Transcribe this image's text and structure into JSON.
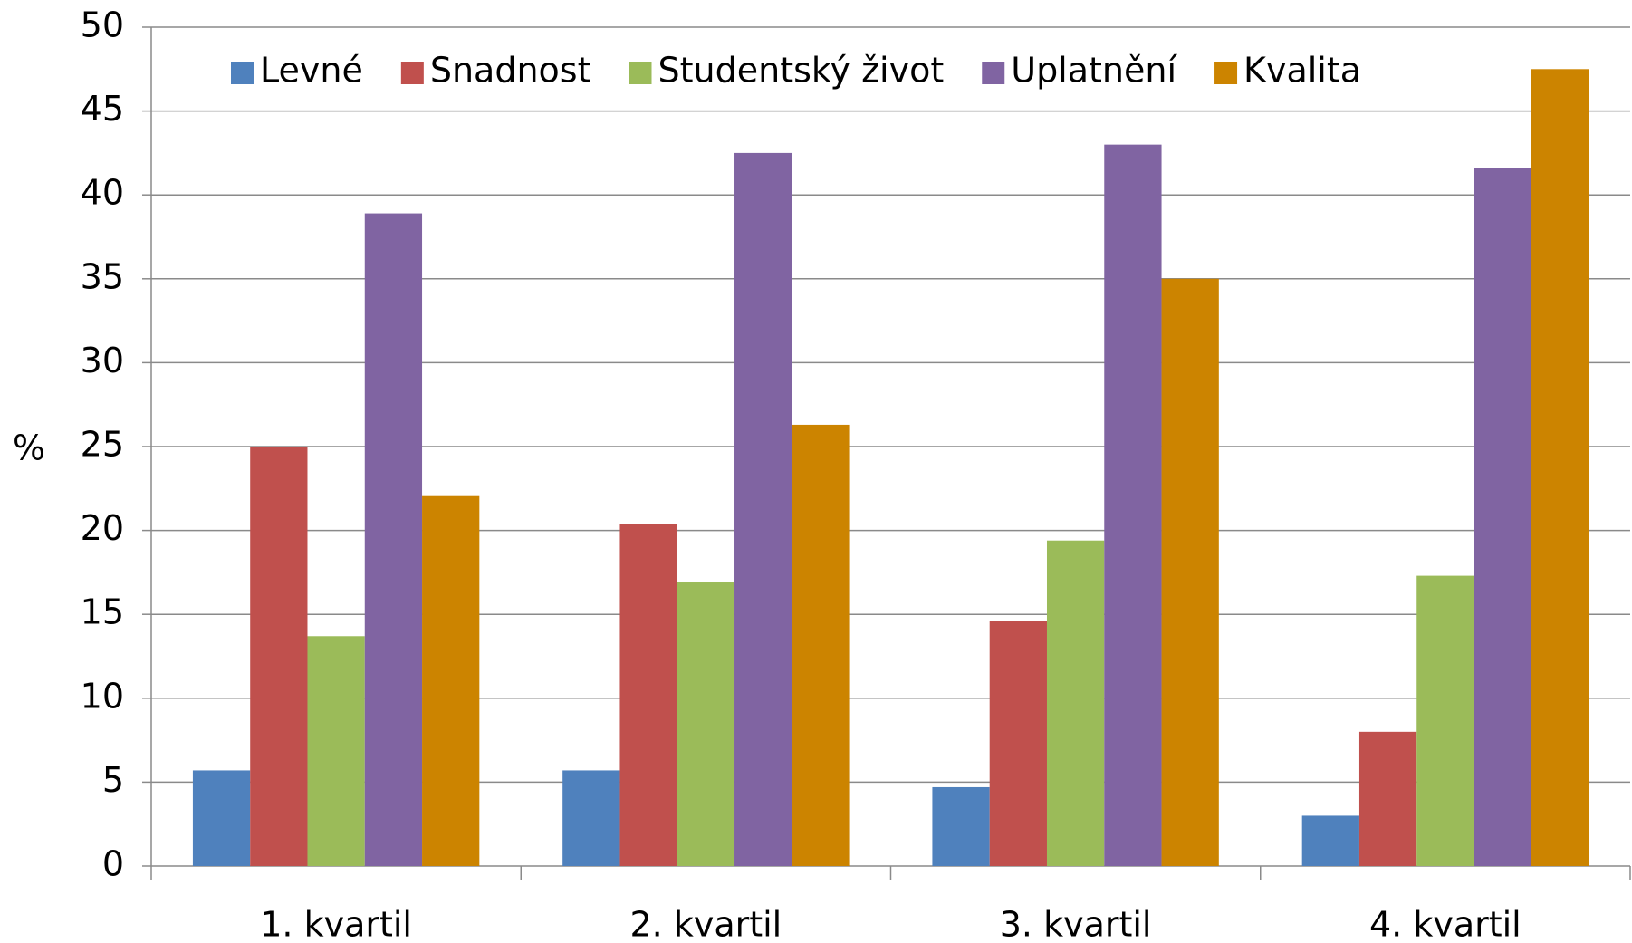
{
  "chart_data": {
    "type": "bar",
    "y_label": "%",
    "categories": [
      "1. kvartil",
      "2. kvartil",
      "3. kvartil",
      "4. kvartil"
    ],
    "series": [
      {
        "name": "Levné",
        "color": "#4f81bd",
        "values": [
          5.7,
          5.7,
          4.7,
          3.0
        ]
      },
      {
        "name": "Snadnost",
        "color": "#c0504d",
        "values": [
          25.0,
          20.4,
          14.6,
          8.0
        ]
      },
      {
        "name": "Studentský život",
        "color": "#9bbb59",
        "values": [
          13.7,
          16.9,
          19.4,
          17.3
        ]
      },
      {
        "name": "Uplatnění",
        "color": "#8064a2",
        "values": [
          38.9,
          42.5,
          43.0,
          41.6
        ]
      },
      {
        "name": "Kvalita",
        "color": "#cc8400",
        "values": [
          22.1,
          26.3,
          35.0,
          47.5
        ]
      }
    ],
    "ylim": [
      0,
      50
    ],
    "yticks": [
      0,
      5,
      10,
      15,
      20,
      25,
      30,
      35,
      40,
      45,
      50
    ],
    "grid": true,
    "legend": "top"
  }
}
